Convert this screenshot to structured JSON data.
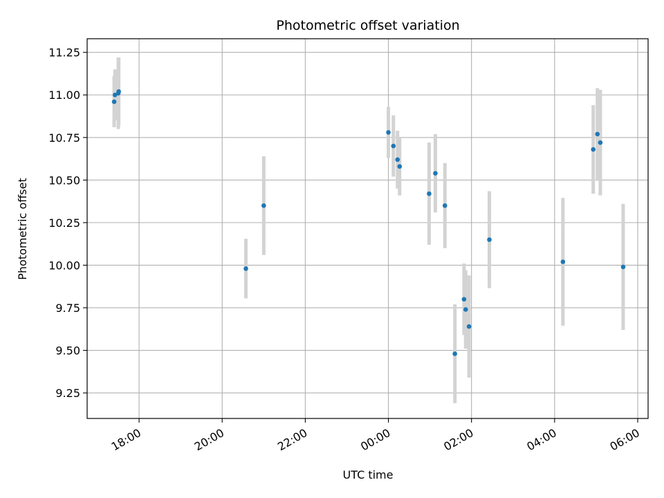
{
  "chart_data": {
    "type": "scatter",
    "title": "Photometric offset variation",
    "xlabel": "UTC time",
    "ylabel": "Photometric offset",
    "x_unit": "hours since 00:00 UTC",
    "xlim": [
      -7.25,
      6.25
    ],
    "ylim": [
      9.1,
      11.33
    ],
    "x_ticks": [
      {
        "value": -6,
        "label": "18:00"
      },
      {
        "value": -4,
        "label": "20:00"
      },
      {
        "value": -2,
        "label": "22:00"
      },
      {
        "value": 0,
        "label": "00:00"
      },
      {
        "value": 2,
        "label": "02:00"
      },
      {
        "value": 4,
        "label": "04:00"
      },
      {
        "value": 6,
        "label": "06:00"
      }
    ],
    "y_ticks": [
      {
        "value": 9.25,
        "label": "9.25"
      },
      {
        "value": 9.5,
        "label": "9.50"
      },
      {
        "value": 9.75,
        "label": "9.75"
      },
      {
        "value": 10.0,
        "label": "10.00"
      },
      {
        "value": 10.25,
        "label": "10.25"
      },
      {
        "value": 10.5,
        "label": "10.50"
      },
      {
        "value": 10.75,
        "label": "10.75"
      },
      {
        "value": 11.0,
        "label": "11.00"
      },
      {
        "value": 11.25,
        "label": "11.25"
      }
    ],
    "grid": true,
    "point_color": "#1f77b4",
    "errorbar_color": "#d3d3d3",
    "points": [
      {
        "x": -6.6,
        "y": 10.96,
        "err": 0.15
      },
      {
        "x": -6.58,
        "y": 11.0,
        "err": 0.15
      },
      {
        "x": -6.5,
        "y": 11.01,
        "err": 0.21
      },
      {
        "x": -6.49,
        "y": 11.02,
        "err": 0.2
      },
      {
        "x": -3.43,
        "y": 9.98,
        "err": 0.175
      },
      {
        "x": -3.0,
        "y": 10.35,
        "err": 0.29
      },
      {
        "x": 0.0,
        "y": 10.78,
        "err": 0.15
      },
      {
        "x": 0.12,
        "y": 10.7,
        "err": 0.18
      },
      {
        "x": 0.22,
        "y": 10.62,
        "err": 0.17
      },
      {
        "x": 0.27,
        "y": 10.58,
        "err": 0.17
      },
      {
        "x": 0.98,
        "y": 10.42,
        "err": 0.3
      },
      {
        "x": 1.13,
        "y": 10.54,
        "err": 0.23
      },
      {
        "x": 1.36,
        "y": 10.35,
        "err": 0.25
      },
      {
        "x": 1.6,
        "y": 9.48,
        "err": 0.29
      },
      {
        "x": 1.82,
        "y": 9.8,
        "err": 0.21
      },
      {
        "x": 1.86,
        "y": 9.74,
        "err": 0.23
      },
      {
        "x": 1.94,
        "y": 9.64,
        "err": 0.3
      },
      {
        "x": 2.43,
        "y": 10.15,
        "err": 0.285
      },
      {
        "x": 4.2,
        "y": 10.02,
        "err": 0.375
      },
      {
        "x": 4.93,
        "y": 10.68,
        "err": 0.26
      },
      {
        "x": 5.03,
        "y": 10.77,
        "err": 0.27
      },
      {
        "x": 5.1,
        "y": 10.72,
        "err": 0.31
      },
      {
        "x": 5.65,
        "y": 9.99,
        "err": 0.37
      }
    ]
  }
}
